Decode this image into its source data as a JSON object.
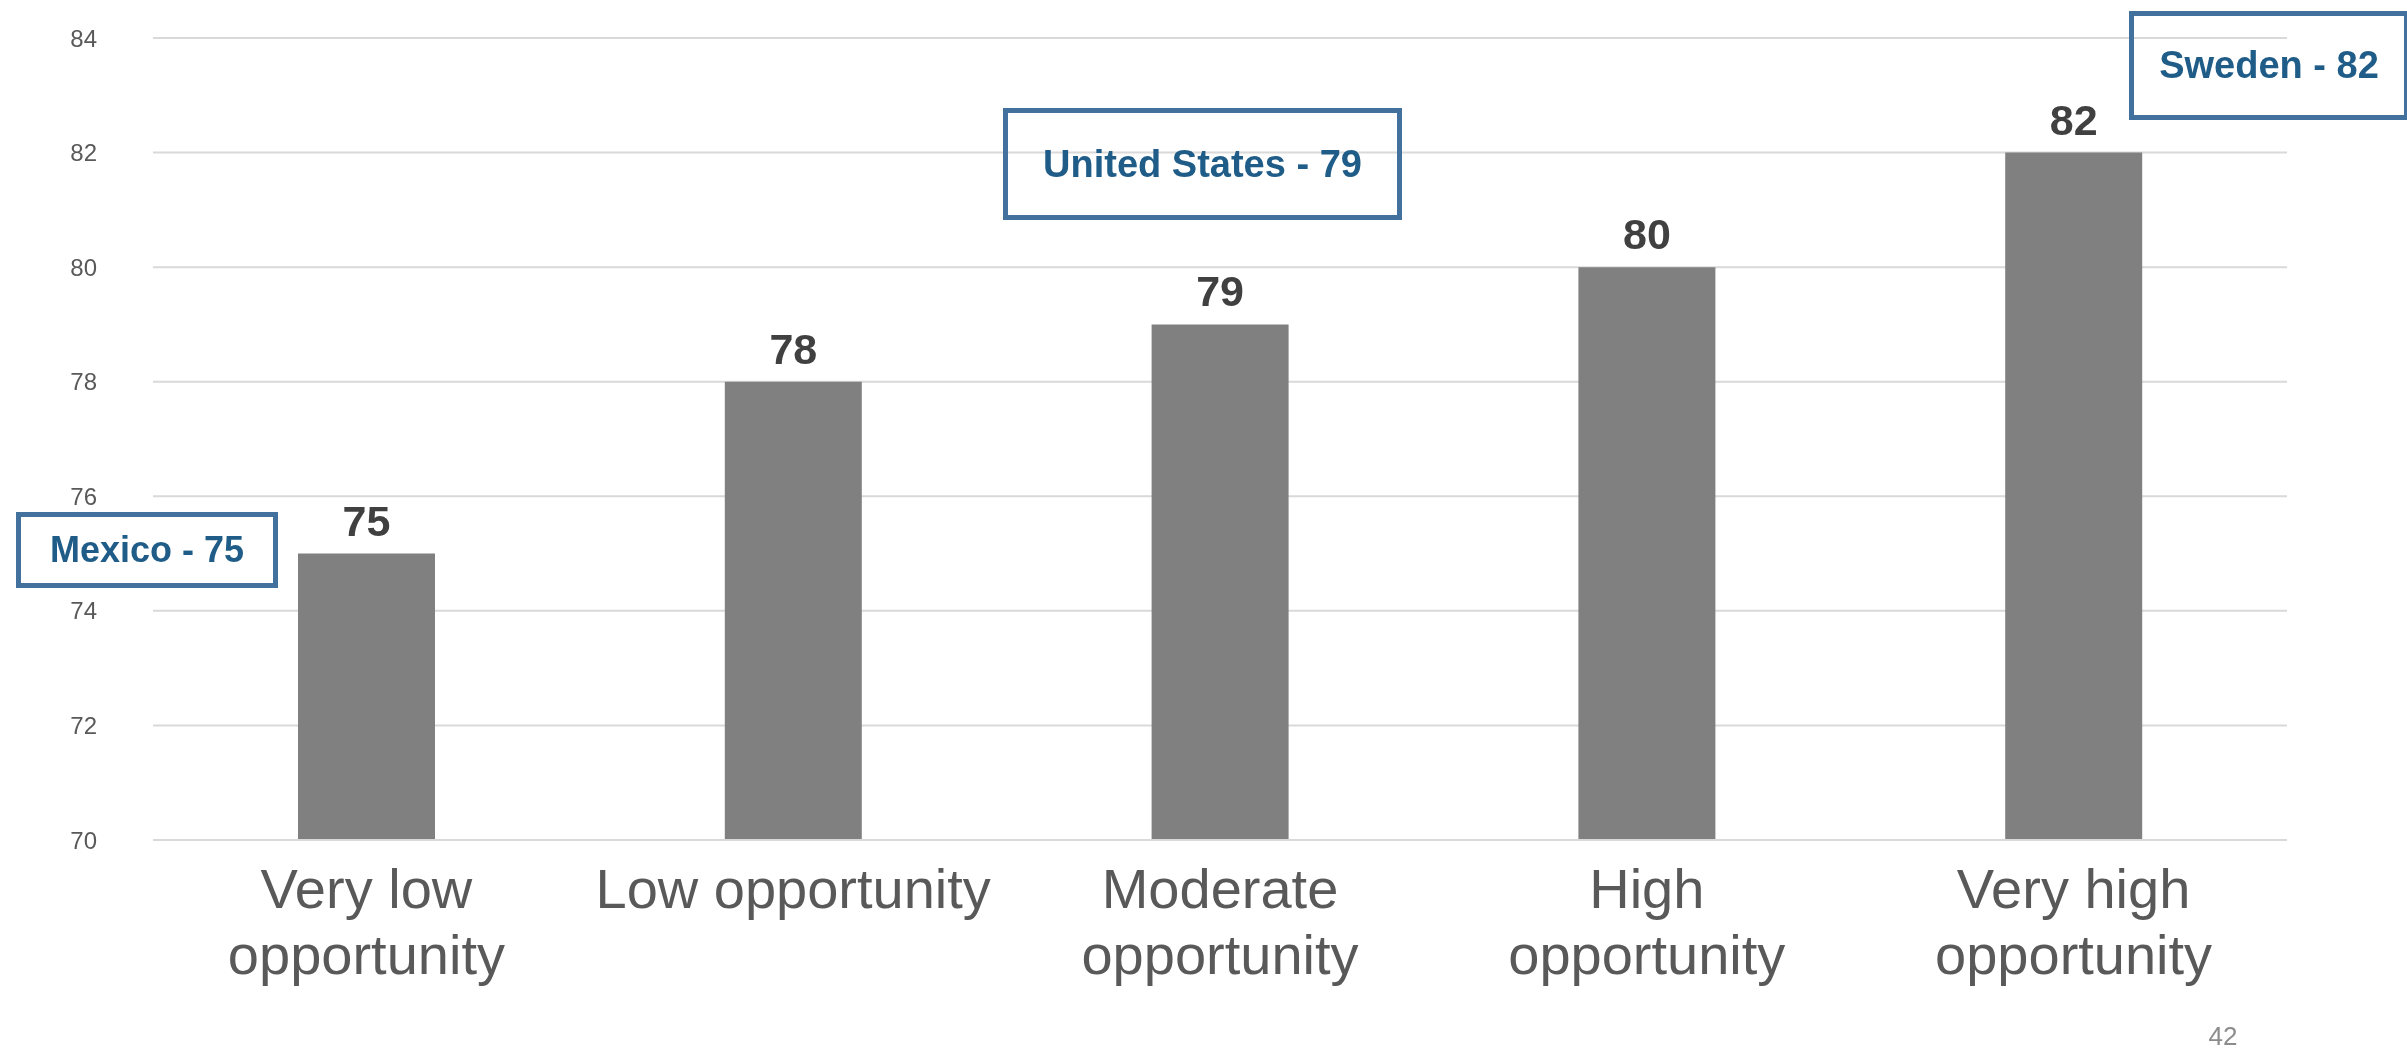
{
  "chart_data": {
    "type": "bar",
    "categories": [
      "Very low opportunity",
      "Low opportunity",
      "Moderate opportunity",
      "High opportunity",
      "Very high opportunity"
    ],
    "values": [
      75,
      78,
      79,
      80,
      82
    ],
    "color": "#808080",
    "ylim": [
      70,
      84
    ],
    "yticks": [
      70,
      72,
      74,
      76,
      78,
      80,
      82,
      84
    ],
    "grid": "y",
    "data_labels": true,
    "annotations": [
      "Mexico - 75",
      "United States - 79",
      "Sweden - 82",
      "42"
    ]
  }
}
